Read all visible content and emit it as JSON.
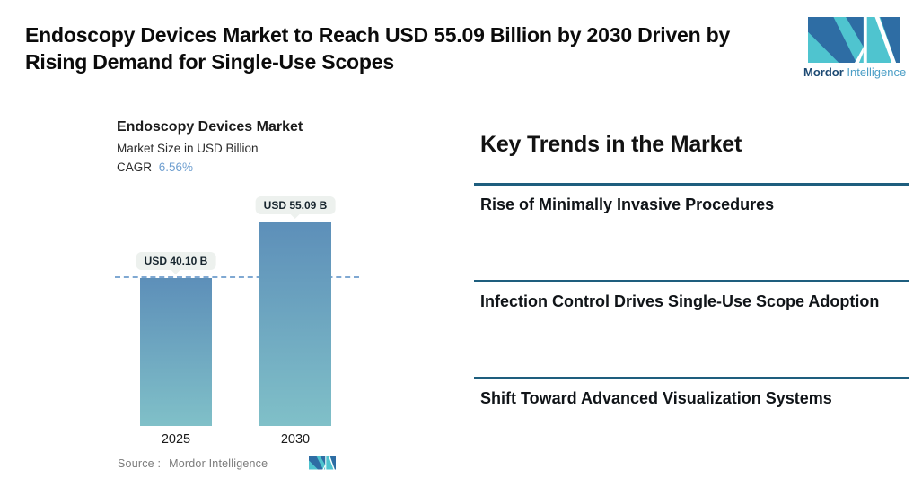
{
  "header": {
    "title": "Endoscopy Devices Market to Reach USD 55.09 Billion by 2030 Driven by Rising Demand for Single-Use Scopes",
    "logo": {
      "brand_bold": "Mordor",
      "brand_light": "Intelligence"
    }
  },
  "chart": {
    "title": "Endoscopy Devices Market",
    "subtitle": "Market Size in USD Billion",
    "cagr_label": "CAGR",
    "cagr_value": "6.56%",
    "source_label": "Source :",
    "source_value": "Mordor Intelligence"
  },
  "chart_data": {
    "type": "bar",
    "title": "Endoscopy Devices Market",
    "ylabel": "Market Size in USD Billion",
    "cagr": "6.56%",
    "categories": [
      "2025",
      "2030"
    ],
    "values": [
      40.1,
      55.09
    ],
    "value_labels": [
      "USD 40.10 B",
      "USD 55.09 B"
    ],
    "baseline_value": 40.1,
    "ylim": [
      0,
      55.09
    ],
    "grid": "single dashed horizontal line at 2025 value",
    "legend": "none",
    "colors": {
      "bar_top": "#5d8fb9",
      "bar_bottom": "#80c0c8",
      "dashed_line": "#7fa8d2",
      "tooltip_bg": "#edf1ee"
    }
  },
  "trends": {
    "heading": "Key Trends in the Market",
    "divider_color": "#1e5e7e",
    "items": [
      {
        "label": "Rise of Minimally Invasive Procedures"
      },
      {
        "label": "Infection Control Drives Single-Use Scope Adoption"
      },
      {
        "label": "Shift Toward Advanced Visualization Systems"
      }
    ]
  },
  "icons": {
    "brand_dark": "#2e6da4",
    "brand_teal": "#4fc4cf"
  }
}
